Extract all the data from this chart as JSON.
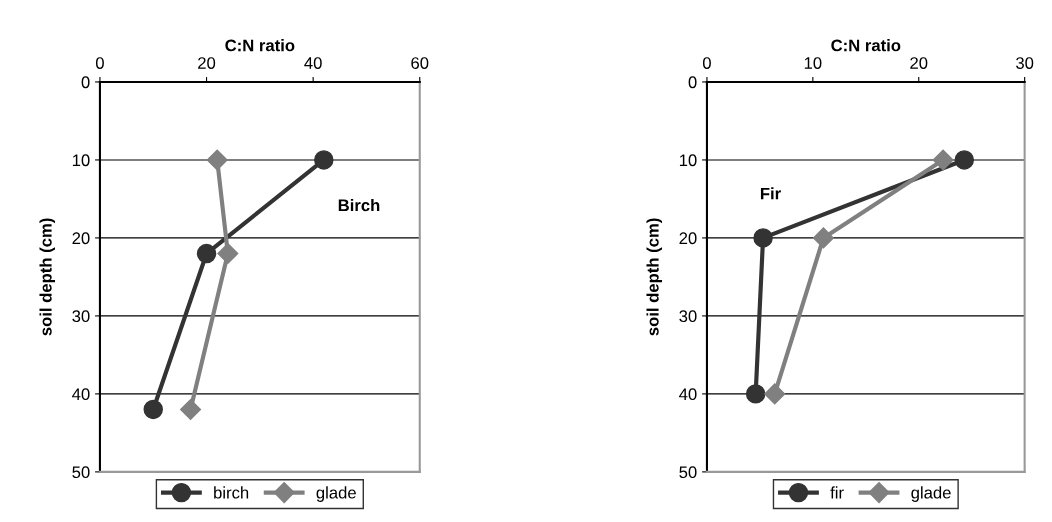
{
  "chart_data": [
    {
      "type": "line",
      "xlabel": "C:N ratio",
      "ylabel": "soil depth (cm)",
      "xlim": [
        0,
        60
      ],
      "xticks": [
        0,
        20,
        40,
        60
      ],
      "ylim": [
        50,
        0
      ],
      "yticks": [
        0,
        10,
        20,
        30,
        40,
        50
      ],
      "grid": "y",
      "legend": "bottom",
      "annotations": [
        "Birch"
      ],
      "series": [
        {
          "name": "birch",
          "color": "#333333",
          "marker": "circle",
          "x": [
            42,
            20,
            10
          ],
          "values": [
            10,
            22,
            42
          ]
        },
        {
          "name": "glade",
          "color": "#808080",
          "marker": "diamond",
          "x": [
            22,
            24,
            17
          ],
          "values": [
            10,
            22,
            42
          ]
        }
      ]
    },
    {
      "type": "line",
      "xlabel": "C:N ratio",
      "ylabel": "soil depth (cm)",
      "xlim": [
        0,
        30
      ],
      "xticks": [
        0,
        10,
        20,
        30
      ],
      "ylim": [
        50,
        0
      ],
      "yticks": [
        0,
        10,
        20,
        30,
        40,
        50
      ],
      "grid": "y",
      "legend": "bottom",
      "annotations": [
        "Fir"
      ],
      "series": [
        {
          "name": "fir",
          "color": "#333333",
          "marker": "circle",
          "x": [
            24.3,
            5.3,
            4.6
          ],
          "values": [
            10,
            20,
            40
          ]
        },
        {
          "name": "glade",
          "color": "#808080",
          "marker": "diamond",
          "x": [
            22.3,
            11,
            6.4
          ],
          "values": [
            10,
            20,
            40
          ]
        }
      ]
    }
  ]
}
